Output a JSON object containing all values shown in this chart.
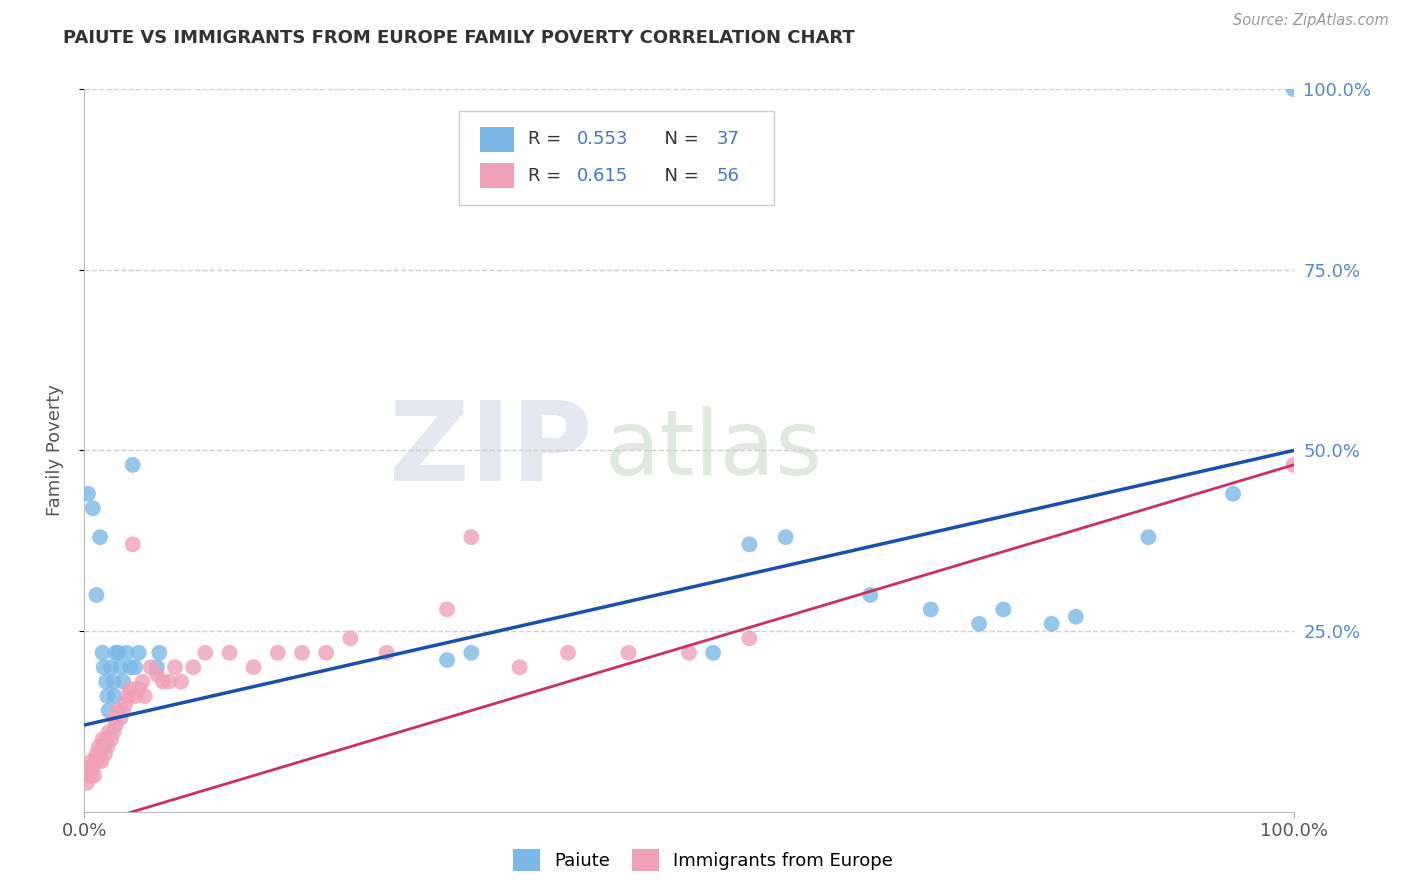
{
  "title": "PAIUTE VS IMMIGRANTS FROM EUROPE FAMILY POVERTY CORRELATION CHART",
  "source": "Source: ZipAtlas.com",
  "ylabel": "Family Poverty",
  "background_color": "#ffffff",
  "grid_color": "#d0d0d0",
  "paiute_color": "#7bb8e8",
  "immigrant_color": "#f0a0b8",
  "paiute_line_color": "#1a4faa",
  "immigrant_line_color": "#cc3060",
  "right_tick_color": "#5588cc",
  "paiute_points": [
    [
      0.003,
      0.44
    ],
    [
      0.007,
      0.42
    ],
    [
      0.01,
      0.3
    ],
    [
      0.013,
      0.38
    ],
    [
      0.015,
      0.22
    ],
    [
      0.016,
      0.2
    ],
    [
      0.018,
      0.18
    ],
    [
      0.019,
      0.16
    ],
    [
      0.02,
      0.14
    ],
    [
      0.022,
      0.2
    ],
    [
      0.024,
      0.18
    ],
    [
      0.025,
      0.16
    ],
    [
      0.026,
      0.22
    ],
    [
      0.028,
      0.22
    ],
    [
      0.03,
      0.2
    ],
    [
      0.032,
      0.18
    ],
    [
      0.035,
      0.22
    ],
    [
      0.038,
      0.2
    ],
    [
      0.04,
      0.48
    ],
    [
      0.042,
      0.2
    ],
    [
      0.045,
      0.22
    ],
    [
      0.06,
      0.2
    ],
    [
      0.062,
      0.22
    ],
    [
      0.3,
      0.21
    ],
    [
      0.32,
      0.22
    ],
    [
      0.52,
      0.22
    ],
    [
      0.55,
      0.37
    ],
    [
      0.58,
      0.38
    ],
    [
      0.65,
      0.3
    ],
    [
      0.7,
      0.28
    ],
    [
      0.74,
      0.26
    ],
    [
      0.76,
      0.28
    ],
    [
      0.8,
      0.26
    ],
    [
      0.82,
      0.27
    ],
    [
      0.88,
      0.38
    ],
    [
      0.95,
      0.44
    ],
    [
      1.0,
      1.0
    ]
  ],
  "immigrant_points": [
    [
      0.002,
      0.04
    ],
    [
      0.004,
      0.06
    ],
    [
      0.005,
      0.05
    ],
    [
      0.006,
      0.07
    ],
    [
      0.007,
      0.06
    ],
    [
      0.008,
      0.05
    ],
    [
      0.009,
      0.07
    ],
    [
      0.01,
      0.08
    ],
    [
      0.011,
      0.07
    ],
    [
      0.012,
      0.09
    ],
    [
      0.013,
      0.08
    ],
    [
      0.014,
      0.07
    ],
    [
      0.015,
      0.1
    ],
    [
      0.016,
      0.09
    ],
    [
      0.017,
      0.08
    ],
    [
      0.018,
      0.1
    ],
    [
      0.019,
      0.09
    ],
    [
      0.02,
      0.11
    ],
    [
      0.022,
      0.1
    ],
    [
      0.024,
      0.11
    ],
    [
      0.025,
      0.13
    ],
    [
      0.026,
      0.12
    ],
    [
      0.028,
      0.14
    ],
    [
      0.03,
      0.13
    ],
    [
      0.032,
      0.14
    ],
    [
      0.034,
      0.15
    ],
    [
      0.036,
      0.16
    ],
    [
      0.038,
      0.17
    ],
    [
      0.04,
      0.37
    ],
    [
      0.042,
      0.16
    ],
    [
      0.045,
      0.17
    ],
    [
      0.048,
      0.18
    ],
    [
      0.05,
      0.16
    ],
    [
      0.055,
      0.2
    ],
    [
      0.06,
      0.19
    ],
    [
      0.065,
      0.18
    ],
    [
      0.07,
      0.18
    ],
    [
      0.075,
      0.2
    ],
    [
      0.08,
      0.18
    ],
    [
      0.09,
      0.2
    ],
    [
      0.1,
      0.22
    ],
    [
      0.12,
      0.22
    ],
    [
      0.14,
      0.2
    ],
    [
      0.16,
      0.22
    ],
    [
      0.18,
      0.22
    ],
    [
      0.2,
      0.22
    ],
    [
      0.22,
      0.24
    ],
    [
      0.25,
      0.22
    ],
    [
      0.3,
      0.28
    ],
    [
      0.32,
      0.38
    ],
    [
      0.36,
      0.2
    ],
    [
      0.4,
      0.22
    ],
    [
      0.45,
      0.22
    ],
    [
      0.5,
      0.22
    ],
    [
      0.55,
      0.24
    ],
    [
      1.0,
      0.48
    ]
  ]
}
